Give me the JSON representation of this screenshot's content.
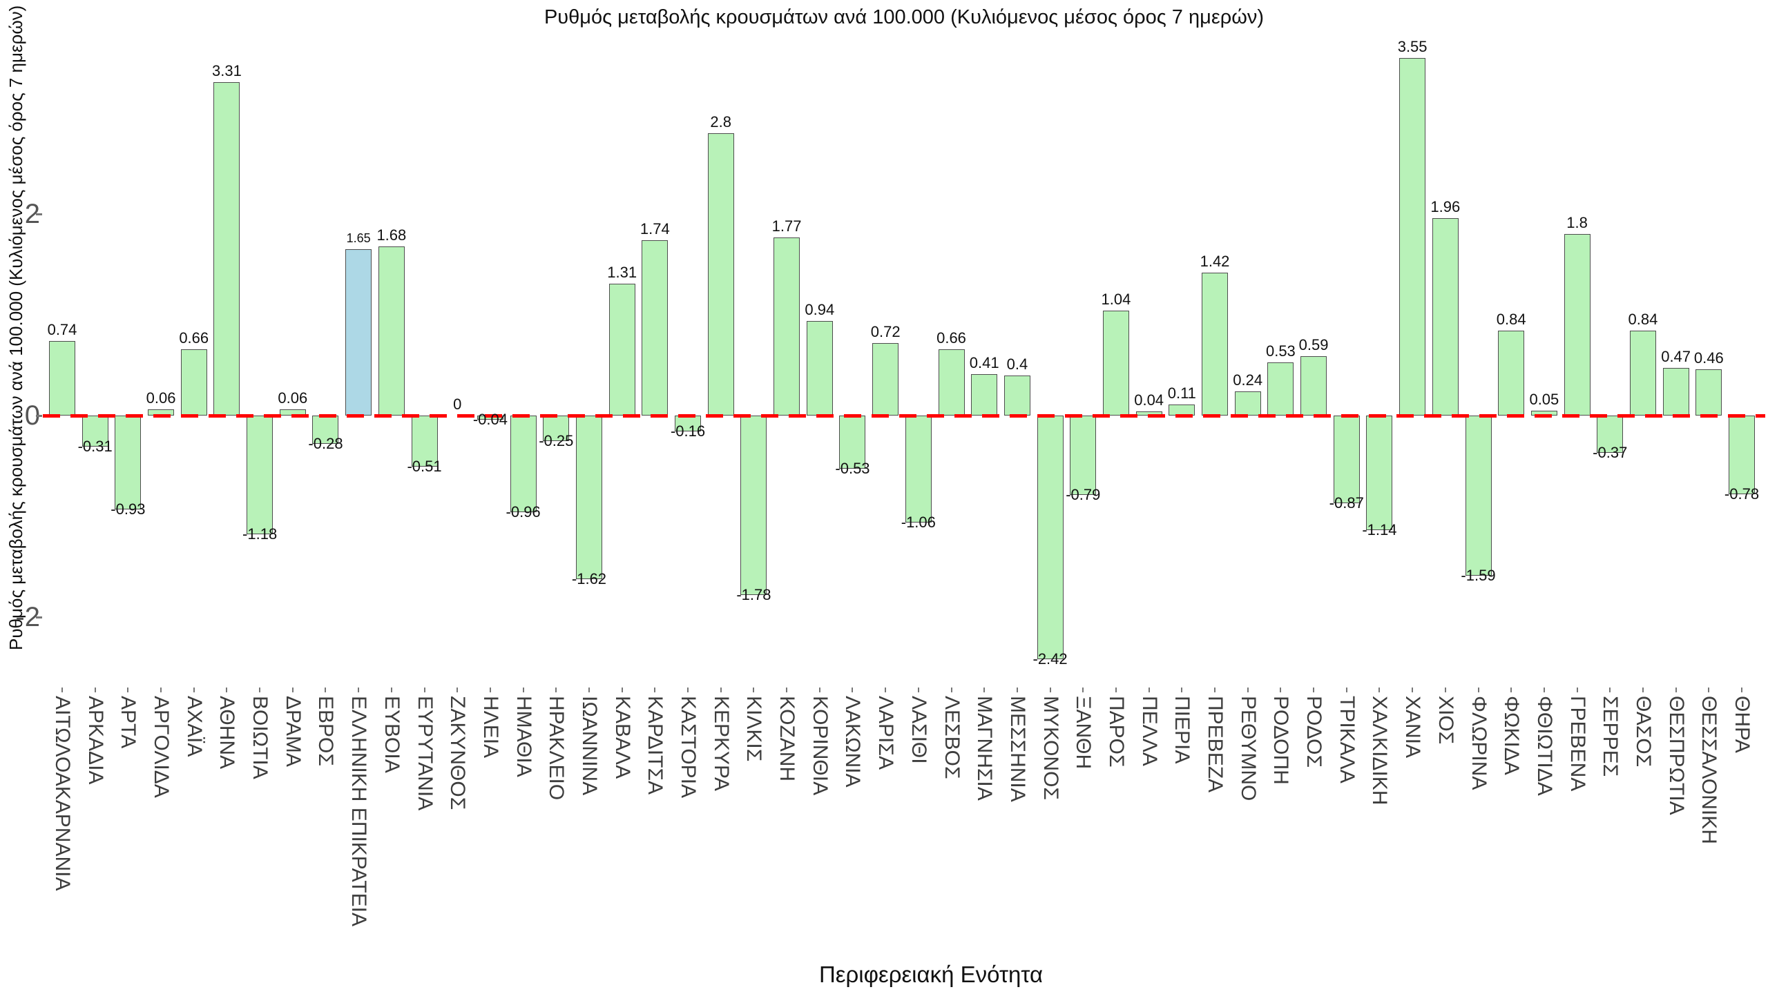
{
  "chart_data": {
    "type": "bar",
    "title": "Ρυθμός μεταβολής κρουσμάτων ανά 100.000 (Κυλιόμενος μέσος όρος 7 ημερών)",
    "xlabel": "Περιφερειακή Ενότητα",
    "ylabel": "Ρυθμός μεταβολής κρουσμάτων ανά 100.000 (Κυλιόμενος μέσος όρος 7 ημερών)",
    "categories": [
      "ΑΙΤΩΛΟΑΚΑΡΝΑΝΙΑ",
      "ΑΡΚΑΔΙΑ",
      "ΑΡΤΑ",
      "ΑΡΓΟΛΙΔΑ",
      "ΑΧΑΪΑ",
      "ΑΘΗΝΑ",
      "ΒΟΙΩΤΙΑ",
      "ΔΡΑΜΑ",
      "ΕΒΡΟΣ",
      "ΕΛΛΗΝΙΚΗ ΕΠΙΚΡΑΤΕΙΑ",
      "ΕΥΒΟΙΑ",
      "ΕΥΡΥΤΑΝΙΑ",
      "ΖΑΚΥΝΘΟΣ",
      "ΗΛΕΙΑ",
      "ΗΜΑΘΙΑ",
      "ΗΡΑΚΛΕΙΟ",
      "ΙΩΑΝΝΙΝΑ",
      "ΚΑΒΑΛΑ",
      "ΚΑΡΔΙΤΣΑ",
      "ΚΑΣΤΟΡΙΑ",
      "ΚΕΡΚΥΡΑ",
      "ΚΙΛΚΙΣ",
      "ΚΟΖΑΝΗ",
      "ΚΟΡΙΝΘΙΑ",
      "ΛΑΚΩΝΙΑ",
      "ΛΑΡΙΣΑ",
      "ΛΑΣΙΘΙ",
      "ΛΕΣΒΟΣ",
      "ΜΑΓΝΗΣΙΑ",
      "ΜΕΣΣΗΝΙΑ",
      "ΜΥΚΟΝΟΣ",
      "ΞΑΝΘΗ",
      "ΠΑΡΟΣ",
      "ΠΕΛΛΑ",
      "ΠΙΕΡΙΑ",
      "ΠΡΕΒΕΖΑ",
      "ΡΕΘΥΜΝΟ",
      "ΡΟΔΟΠΗ",
      "ΡΟΔΟΣ",
      "ΤΡΙΚΑΛΑ",
      "ΧΑΛΚΙΔΙΚΗ",
      "ΧΑΝΙΑ",
      "ΧΙΟΣ",
      "ΦΛΩΡΙΝΑ",
      "ΦΩΚΙΔΑ",
      "ΦΘΙΩΤΙΔΑ",
      "ΓΡΕΒΕΝΑ",
      "ΣΕΡΡΕΣ",
      "ΘΑΣΟΣ",
      "ΘΕΣΠΡΩΤΙΑ",
      "ΘΕΣΣΑΛΟΝΙΚΗ",
      "ΘΗΡΑ"
    ],
    "values": [
      0.74,
      -0.31,
      -0.93,
      0.06,
      0.66,
      3.31,
      -1.18,
      0.06,
      -0.28,
      1.65,
      1.68,
      -0.51,
      0,
      -0.04,
      -0.96,
      -0.25,
      -1.62,
      1.31,
      1.74,
      -0.16,
      2.8,
      -1.78,
      1.77,
      0.94,
      -0.53,
      0.72,
      -1.06,
      0.66,
      0.41,
      0.4,
      -2.42,
      -0.79,
      1.04,
      0.04,
      0.11,
      1.42,
      0.24,
      0.53,
      0.59,
      -0.87,
      -1.14,
      3.55,
      1.96,
      -1.59,
      0.84,
      0.05,
      1.8,
      -0.37,
      0.84,
      0.47,
      0.46,
      -0.78
    ],
    "value_labels": [
      "0.74",
      "-0.31",
      "-0.93",
      "0.06",
      "0.66",
      "3.31",
      "-1.18",
      "0.06",
      "-0.28",
      "1.65",
      "1.68",
      "-0.51",
      "0",
      "-0.04",
      "-0.96",
      "-0.25",
      "-1.62",
      "1.31",
      "1.74",
      "-0.16",
      "2.8",
      "-1.78",
      "1.77",
      "0.94",
      "-0.53",
      "0.72",
      "-1.06",
      "0.66",
      "0.41",
      "0.4",
      "-2.42",
      "-0.79",
      "1.04",
      "0.04",
      "0.11",
      "1.42",
      "0.24",
      "0.53",
      "0.59",
      "-0.87",
      "-1.14",
      "3.55",
      "1.96",
      "-1.59",
      "0.84",
      "0.05",
      "1.8",
      "-0.37",
      "0.84",
      "0.47",
      "0.46",
      "-0.78"
    ],
    "highlight": {
      "index": 9,
      "category": "ΕΛΛΗΝΙΚΗ ΕΠΙΚΡΑΤΕΙΑ"
    },
    "ytick_labels": [
      "2",
      "0",
      "-2"
    ],
    "yticks": [
      2,
      0,
      -2
    ],
    "ylim": [
      -2.65,
      3.75
    ],
    "grid": false,
    "legend": null,
    "zero_line": {
      "y": 0,
      "style": "dashed",
      "color": "#ff0000"
    },
    "colors": {
      "bar_fill": "#b8f2b8",
      "highlight_fill": "#add8e6",
      "bar_edge": "#4d4d4d",
      "zero_line": "#ff0000",
      "tick_text": "#555555",
      "category_text": "#3d3d3d",
      "value_text": "#111111",
      "background": "#ffffff"
    }
  }
}
